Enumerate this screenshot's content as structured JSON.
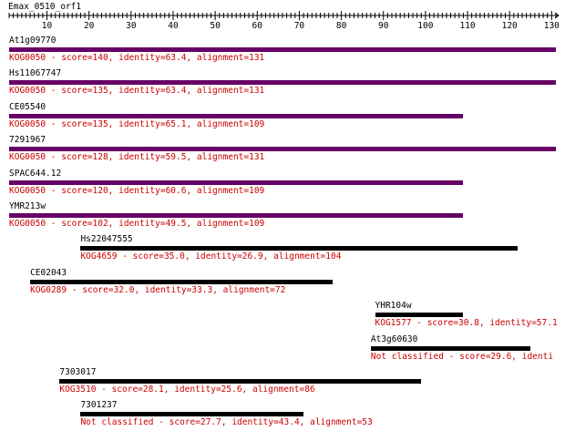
{
  "query": {
    "name": "Emax_0510_orf1",
    "length": 130,
    "ticks": [
      "10",
      "20",
      "30",
      "40",
      "50",
      "60",
      "70",
      "80",
      "90",
      "100",
      "110",
      "120",
      "130"
    ]
  },
  "colors": {
    "primary_bar": "#660066",
    "secondary_bar": "#000000",
    "label": "#000000",
    "info": "#cc0000"
  },
  "hits": [
    {
      "name": "At1g09770",
      "info": "KOG0050 - score=140, identity=63.4, alignment=131",
      "start": 1,
      "end": 131,
      "style": "primary"
    },
    {
      "name": "Hs11067747",
      "info": "KOG0050 - score=135, identity=63.4, alignment=131",
      "start": 1,
      "end": 131,
      "style": "primary"
    },
    {
      "name": "CE05540",
      "info": "KOG0050 - score=135, identity=65.1, alignment=109",
      "start": 1,
      "end": 109,
      "style": "primary"
    },
    {
      "name": "7291967",
      "info": "KOG0050 - score=128, identity=59.5, alignment=131",
      "start": 1,
      "end": 131,
      "style": "primary"
    },
    {
      "name": "SPAC644.12",
      "info": "KOG0050 - score=120, identity=60.6, alignment=109",
      "start": 1,
      "end": 109,
      "style": "primary"
    },
    {
      "name": "YMR213w",
      "info": "KOG0050 - score=102, identity=49.5, alignment=109",
      "start": 1,
      "end": 109,
      "style": "primary"
    },
    {
      "name": "Hs22047555",
      "info": "KOG4659 - score=35.0, identity=26.9, alignment=104",
      "start": 18,
      "end": 122,
      "style": "secondary"
    },
    {
      "name": "CE02043",
      "info": "KOG0289 - score=32.0, identity=33.3, alignment=72",
      "start": 6,
      "end": 78,
      "style": "secondary"
    },
    {
      "name": "YHR104w",
      "info": "KOG1577 - score=30.8, identity=57.1",
      "start": 88,
      "end": 109,
      "style": "secondary"
    },
    {
      "name": "At3g60630",
      "info": "Not classified - score=29.6, identi",
      "start": 87,
      "end": 125,
      "style": "secondary"
    },
    {
      "name": "7303017",
      "info": "KOG3510 - score=28.1, identity=25.6, alignment=86",
      "start": 13,
      "end": 99,
      "style": "secondary"
    },
    {
      "name": "7301237",
      "info": "Not classified - score=27.7, identity=43.4, alignment=53",
      "start": 18,
      "end": 71,
      "style": "secondary"
    }
  ]
}
